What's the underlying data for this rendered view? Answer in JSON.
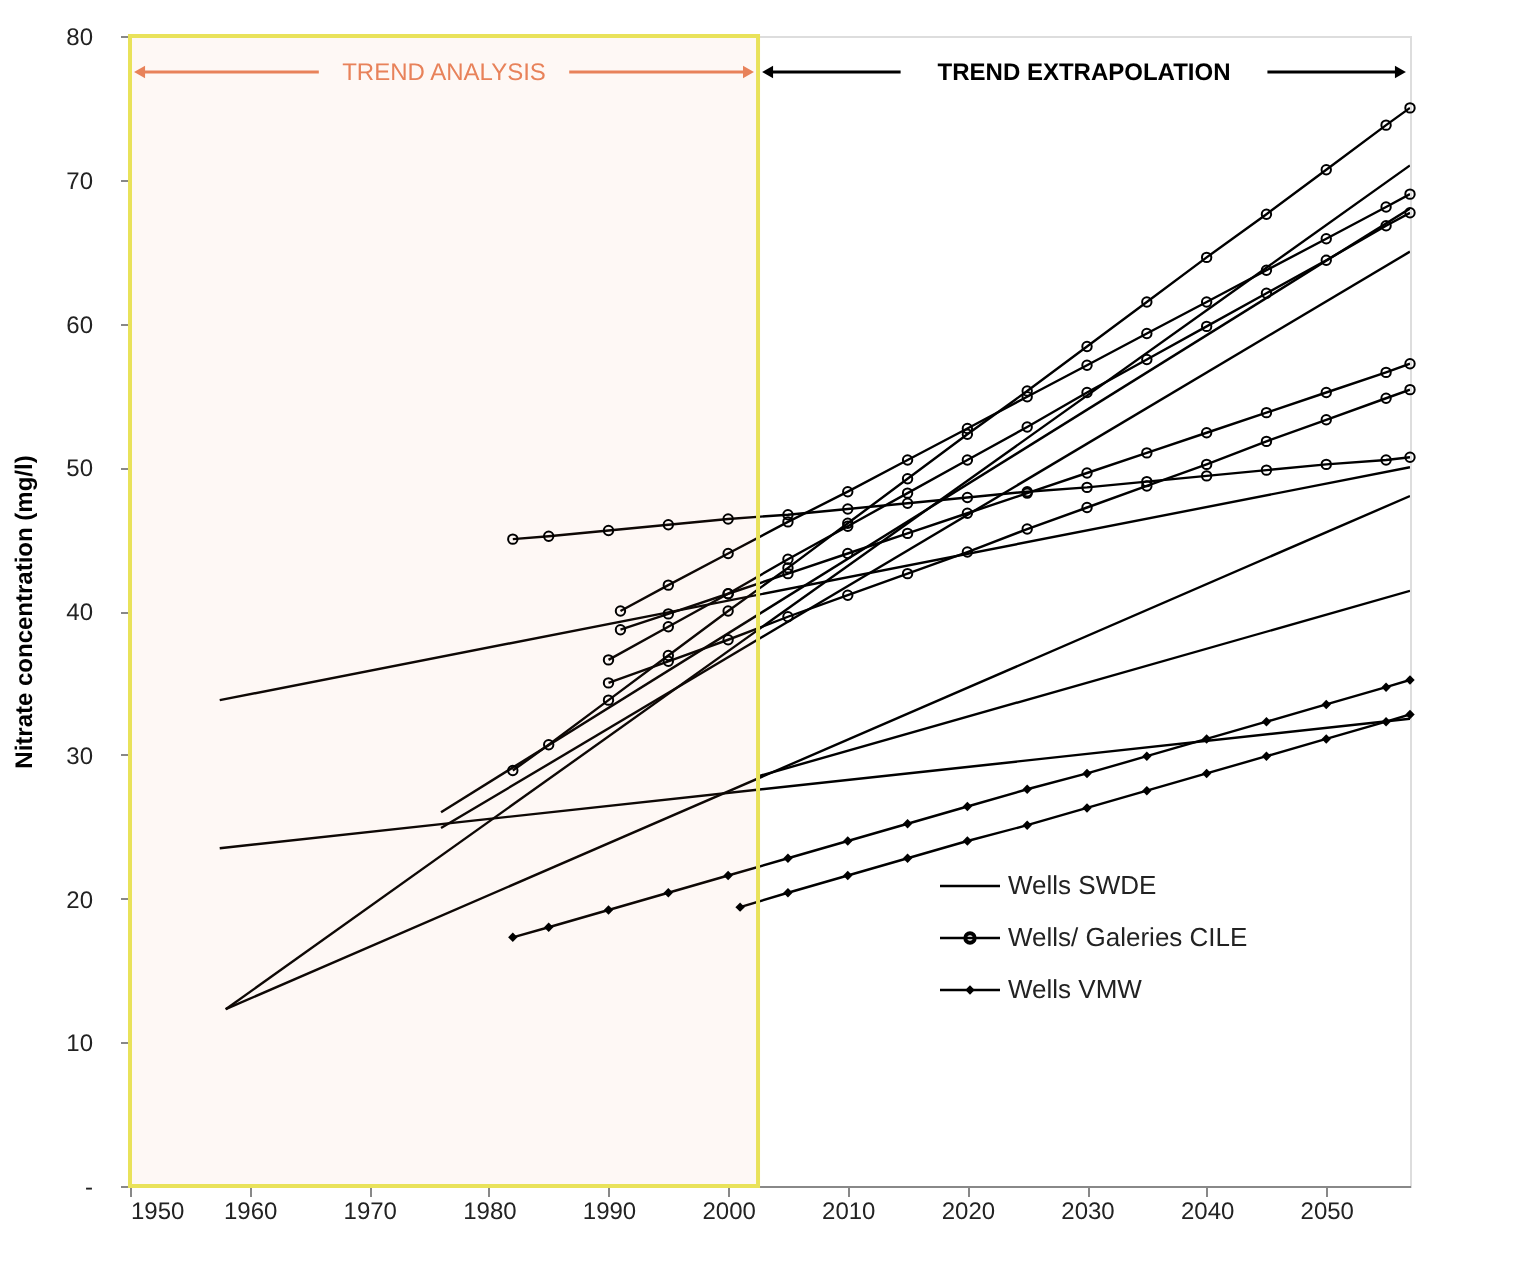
{
  "chart_data": {
    "type": "line",
    "ylabel": "Nitrate concentration (mg/l)",
    "xlim": [
      1950,
      2057
    ],
    "ylim": [
      0,
      80
    ],
    "xticks": [
      1950,
      1960,
      1970,
      1980,
      1990,
      2000,
      2010,
      2020,
      2030,
      2040,
      2050
    ],
    "yticks": [
      {
        "value": 0,
        "label": "-"
      },
      10,
      20,
      30,
      40,
      50,
      60,
      70,
      80
    ],
    "grid": false,
    "legend": "bottom right",
    "bands": [
      {
        "axis": "x",
        "from": 1950,
        "to": 2002.5,
        "label": "TREND ANALYSIS",
        "color": "#e8825a"
      }
    ],
    "annotations": [
      "TREND EXTRAPOLATION"
    ],
    "series": [
      {
        "name": "Wells SWDE",
        "color": "#000000",
        "marker": "none",
        "x": [
          1957.5,
          2057
        ],
        "values": [
          33.8,
          50
        ]
      },
      {
        "color": "#000000",
        "marker": "none",
        "x": [
          1957.5,
          2057
        ],
        "values": [
          23.5,
          32.5
        ]
      },
      {
        "color": "#000000",
        "marker": "none",
        "x": [
          1958,
          2057
        ],
        "values": [
          12.3,
          71
        ]
      },
      {
        "color": "#000000",
        "marker": "none",
        "x": [
          1958,
          2057
        ],
        "values": [
          12.3,
          48
        ]
      },
      {
        "color": "#000000",
        "marker": "none",
        "x": [
          1976,
          2057
        ],
        "values": [
          26,
          68
        ]
      },
      {
        "color": "#000000",
        "marker": "none",
        "x": [
          1976,
          2057
        ],
        "values": [
          24.9,
          65
        ]
      },
      {
        "color": "#000000",
        "marker": "none",
        "x": [
          2002.5,
          2057
        ],
        "values": [
          28.5,
          41.4
        ]
      },
      {
        "name": "Wells/ Galeries CILE",
        "color": "#000000",
        "marker": "circle",
        "x": [
          1982,
          1985,
          1990,
          1995,
          2000,
          2005,
          2010,
          2015,
          2020,
          2025,
          2030,
          2035,
          2040,
          2045,
          2050,
          2055,
          2057
        ],
        "values": [
          45,
          45.2,
          45.6,
          46.0,
          46.4,
          46.7,
          47.1,
          47.5,
          47.9,
          48.3,
          48.6,
          49.0,
          49.4,
          49.8,
          50.2,
          50.5,
          50.7
        ]
      },
      {
        "color": "#000000",
        "marker": "circle",
        "x": [
          1982,
          1985,
          1990,
          1995,
          2000,
          2005,
          2010,
          2015,
          2020,
          2025,
          2030,
          2035,
          2040,
          2045,
          2050,
          2055,
          2057
        ],
        "values": [
          28.9,
          30.7,
          33.8,
          36.9,
          40.0,
          43.0,
          46.1,
          49.2,
          52.3,
          55.3,
          58.4,
          61.5,
          64.6,
          67.6,
          70.7,
          73.8,
          75.0
        ]
      },
      {
        "color": "#000000",
        "marker": "circle",
        "x": [
          1991,
          1995,
          2000,
          2005,
          2010,
          2015,
          2020,
          2025,
          2030,
          2035,
          2040,
          2045,
          2050,
          2055,
          2057
        ],
        "values": [
          40,
          41.8,
          44.0,
          46.2,
          48.3,
          50.5,
          52.7,
          54.9,
          57.1,
          59.3,
          61.5,
          63.7,
          65.9,
          68.1,
          69
        ]
      },
      {
        "color": "#000000",
        "marker": "circle",
        "x": [
          1990,
          1995,
          2000,
          2005,
          2010,
          2015,
          2020,
          2025,
          2030,
          2035,
          2040,
          2045,
          2050,
          2055,
          2057
        ],
        "values": [
          36.6,
          38.9,
          41.2,
          43.6,
          45.9,
          48.2,
          50.5,
          52.8,
          55.2,
          57.5,
          59.8,
          62.1,
          64.4,
          66.8,
          67.7
        ]
      },
      {
        "color": "#000000",
        "marker": "circle",
        "x": [
          1991,
          1995,
          2000,
          2005,
          2010,
          2015,
          2020,
          2025,
          2030,
          2035,
          2040,
          2045,
          2050,
          2055,
          2057
        ],
        "values": [
          38.7,
          39.8,
          41.2,
          42.6,
          44.0,
          45.4,
          46.8,
          48.2,
          49.6,
          51.0,
          52.4,
          53.8,
          55.2,
          56.6,
          57.2
        ]
      },
      {
        "color": "#000000",
        "marker": "circle",
        "x": [
          1990,
          1995,
          2000,
          2005,
          2010,
          2015,
          2020,
          2025,
          2030,
          2035,
          2040,
          2045,
          2050,
          2055,
          2057
        ],
        "values": [
          35,
          36.5,
          38.0,
          39.6,
          41.1,
          42.6,
          44.1,
          45.7,
          47.2,
          48.7,
          50.2,
          51.8,
          53.3,
          54.8,
          55.4
        ]
      },
      {
        "name": "Wells VMW",
        "color": "#000000",
        "marker": "diamond",
        "x": [
          1982,
          1985,
          1990,
          1995,
          2000,
          2005,
          2010,
          2015,
          2020,
          2025,
          2030,
          2035,
          2040,
          2045,
          2050,
          2055,
          2057
        ],
        "values": [
          17.3,
          18.0,
          19.2,
          20.4,
          21.6,
          22.8,
          24.0,
          25.2,
          26.4,
          27.6,
          28.7,
          29.9,
          31.1,
          32.3,
          33.5,
          34.7,
          35.2
        ]
      },
      {
        "color": "#000000",
        "marker": "diamond",
        "x": [
          2001,
          2005,
          2010,
          2015,
          2020,
          2025,
          2030,
          2035,
          2040,
          2045,
          2050,
          2055,
          2057
        ],
        "values": [
          19.4,
          20.4,
          21.6,
          22.8,
          24.0,
          25.1,
          26.3,
          27.5,
          28.7,
          29.9,
          31.1,
          32.3,
          32.8
        ]
      }
    ]
  }
}
